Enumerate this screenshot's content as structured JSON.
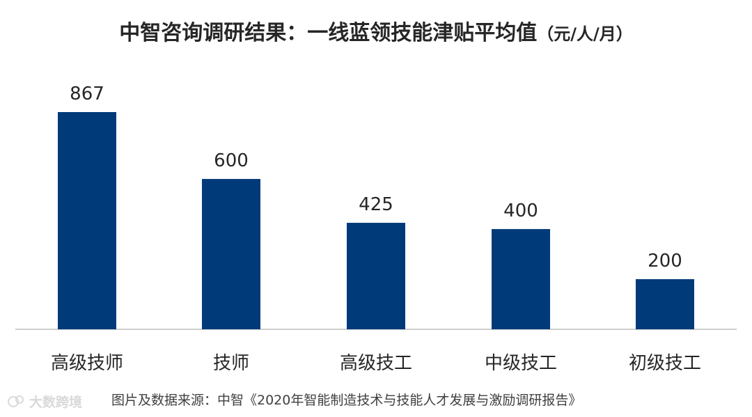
{
  "title": {
    "main": "中智咨询调研结果：一线蓝领技能津贴平均值",
    "unit": "（元/人/月）"
  },
  "source": "图片及数据来源：中智《2020年智能制造技术与技能人才发展与激励调研报告》",
  "watermark": {
    "text": "大数跨境",
    "icon": "chat-bubble-icon"
  },
  "colors": {
    "bar": "#003A78",
    "axis": "#bfbfbf",
    "text": "#262626"
  },
  "chart_data": {
    "type": "bar",
    "categories": [
      "高级技师",
      "技师",
      "高级技工",
      "中级技工",
      "初级技工"
    ],
    "values": [
      867,
      600,
      425,
      400,
      200
    ],
    "data_labels": [
      "867",
      "600",
      "425",
      "400",
      "200"
    ],
    "title": "中智咨询调研结果：一线蓝领技能津贴平均值（元/人/月）",
    "xlabel": "",
    "ylabel": "",
    "ylim": [
      0,
      867
    ],
    "grid": false,
    "legend": "none"
  }
}
